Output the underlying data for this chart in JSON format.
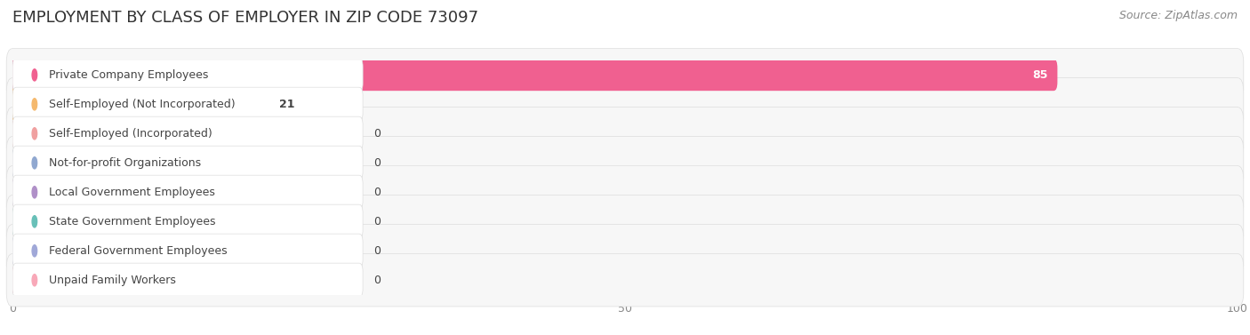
{
  "title": "EMPLOYMENT BY CLASS OF EMPLOYER IN ZIP CODE 73097",
  "source": "Source: ZipAtlas.com",
  "categories": [
    "Private Company Employees",
    "Self-Employed (Not Incorporated)",
    "Self-Employed (Incorporated)",
    "Not-for-profit Organizations",
    "Local Government Employees",
    "State Government Employees",
    "Federal Government Employees",
    "Unpaid Family Workers"
  ],
  "values": [
    85,
    21,
    0,
    0,
    0,
    0,
    0,
    0
  ],
  "bar_colors": [
    "#F06090",
    "#F5B96E",
    "#F0A0A0",
    "#90A8D0",
    "#B090C8",
    "#68C0B8",
    "#A0A8D8",
    "#F8A8B8"
  ],
  "bar_bg_colors": [
    "#F8E8F0",
    "#FDF0E0",
    "#FAE8E8",
    "#E8ECF8",
    "#EDE8F8",
    "#E4F4F0",
    "#E8E8F8",
    "#FAE8EE"
  ],
  "row_bg_color": "#F0F0F0",
  "xlim": [
    0,
    100
  ],
  "xticks": [
    0,
    50,
    100
  ],
  "background_color": "#FFFFFF",
  "title_fontsize": 13,
  "source_fontsize": 9,
  "label_fontsize": 9,
  "value_fontsize": 9
}
